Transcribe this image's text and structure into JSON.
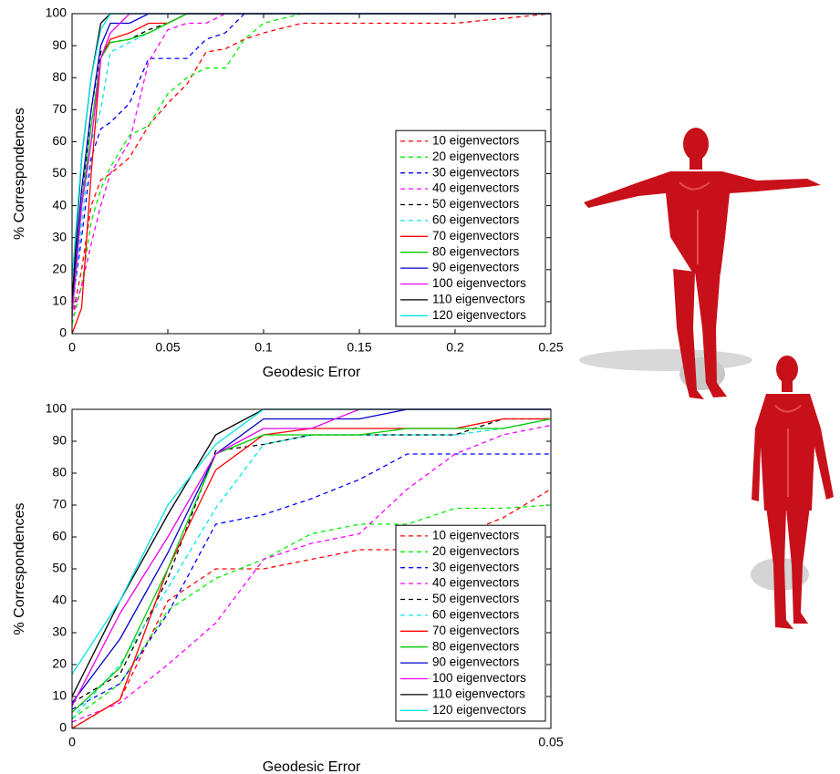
{
  "chart_data": [
    {
      "type": "line",
      "xlabel": "Geodesic Error",
      "ylabel": "% Correspondences",
      "x": [
        0,
        0.005,
        0.01,
        0.015,
        0.02,
        0.03,
        0.04,
        0.05,
        0.06,
        0.07,
        0.08,
        0.09,
        0.1,
        0.12,
        0.15,
        0.2,
        0.25
      ],
      "xlim": [
        0,
        0.25
      ],
      "xticks": [
        0,
        0.05,
        0.1,
        0.15,
        0.2,
        0.25
      ],
      "ylim": [
        0,
        100
      ],
      "yticks": [
        0,
        10,
        20,
        30,
        40,
        50,
        60,
        70,
        80,
        90,
        100
      ],
      "legend": "lower right",
      "series": [
        {
          "name": "10 eigenvectors",
          "color": "#ff0000",
          "style": "dashed",
          "values": [
            5,
            20,
            40,
            48,
            50,
            55,
            65,
            72,
            78,
            88,
            89,
            92,
            94,
            97,
            97,
            97,
            100
          ]
        },
        {
          "name": "20 eigenvectors",
          "color": "#00ee00",
          "style": "dashed",
          "values": [
            3,
            15,
            35,
            45,
            52,
            62,
            65,
            75,
            80,
            83,
            83,
            92,
            97,
            100,
            100,
            100,
            100
          ]
        },
        {
          "name": "30 eigenvectors",
          "color": "#0000ff",
          "style": "dashed",
          "values": [
            8,
            30,
            55,
            64,
            66,
            72,
            86,
            86,
            86,
            92,
            94,
            100,
            100,
            100,
            100,
            100,
            100
          ]
        },
        {
          "name": "40 eigenvectors",
          "color": "#ff00ff",
          "style": "dashed",
          "values": [
            5,
            15,
            28,
            40,
            50,
            60,
            85,
            95,
            97,
            97,
            100,
            100,
            100,
            100,
            100,
            100,
            100
          ]
        },
        {
          "name": "50 eigenvectors",
          "color": "#000000",
          "style": "dashed",
          "values": [
            8,
            40,
            70,
            88,
            91,
            92,
            95,
            97,
            100,
            100,
            100,
            100,
            100,
            100,
            100,
            100,
            100
          ]
        },
        {
          "name": "60 eigenvectors",
          "color": "#00e5e5",
          "style": "dashed",
          "values": [
            5,
            35,
            60,
            70,
            88,
            91,
            94,
            97,
            100,
            100,
            100,
            100,
            100,
            100,
            100,
            100,
            100
          ]
        },
        {
          "name": "70 eigenvectors",
          "color": "#ff0000",
          "style": "solid",
          "values": [
            0,
            8,
            50,
            86,
            92,
            94,
            97,
            97,
            100,
            100,
            100,
            100,
            100,
            100,
            100,
            100,
            100
          ]
        },
        {
          "name": "80 eigenvectors",
          "color": "#00cc00",
          "style": "solid",
          "values": [
            6,
            40,
            65,
            86,
            91,
            92,
            94,
            97,
            100,
            100,
            100,
            100,
            100,
            100,
            100,
            100,
            100
          ]
        },
        {
          "name": "90 eigenvectors",
          "color": "#0000cc",
          "style": "solid",
          "values": [
            8,
            45,
            70,
            90,
            97,
            97,
            100,
            100,
            100,
            100,
            100,
            100,
            100,
            100,
            100,
            100,
            100
          ]
        },
        {
          "name": "100 eigenvectors",
          "color": "#ee00ee",
          "style": "solid",
          "values": [
            6,
            40,
            60,
            86,
            94,
            100,
            100,
            100,
            100,
            100,
            100,
            100,
            100,
            100,
            100,
            100,
            100
          ]
        },
        {
          "name": "110 eigenvectors",
          "color": "#000000",
          "style": "solid",
          "values": [
            10,
            55,
            80,
            97,
            100,
            100,
            100,
            100,
            100,
            100,
            100,
            100,
            100,
            100,
            100,
            100,
            100
          ]
        },
        {
          "name": "120 eigenvectors",
          "color": "#00e5e5",
          "style": "solid",
          "values": [
            17,
            55,
            80,
            95,
            100,
            100,
            100,
            100,
            100,
            100,
            100,
            100,
            100,
            100,
            100,
            100,
            100
          ]
        }
      ]
    },
    {
      "type": "line",
      "xlabel": "Geodesic Error",
      "ylabel": "% Correspondences",
      "x": [
        0,
        0.005,
        0.01,
        0.015,
        0.02,
        0.025,
        0.03,
        0.035,
        0.04,
        0.045,
        0.05
      ],
      "xlim": [
        0,
        0.05
      ],
      "xticks": [
        0,
        0.05
      ],
      "ylim": [
        0,
        100
      ],
      "yticks": [
        0,
        10,
        20,
        30,
        40,
        50,
        60,
        70,
        80,
        90,
        100
      ],
      "legend": "lower right",
      "series": [
        {
          "name": "10 eigenvectors",
          "color": "#ff0000",
          "style": "dashed",
          "values": [
            0,
            9,
            40,
            50,
            50,
            53,
            56,
            56,
            60,
            66,
            75
          ]
        },
        {
          "name": "20 eigenvectors",
          "color": "#00ee00",
          "style": "dashed",
          "values": [
            3,
            14,
            37,
            47,
            53,
            61,
            64,
            64,
            69,
            69,
            70
          ]
        },
        {
          "name": "30 eigenvectors",
          "color": "#0000ff",
          "style": "dashed",
          "values": [
            6,
            14,
            36,
            64,
            67,
            72,
            78,
            86,
            86,
            86,
            86
          ]
        },
        {
          "name": "40 eigenvectors",
          "color": "#ff00ff",
          "style": "dashed",
          "values": [
            2,
            8,
            20,
            33,
            53,
            58,
            61,
            75,
            86,
            92,
            95
          ]
        },
        {
          "name": "50 eigenvectors",
          "color": "#000000",
          "style": "dashed",
          "values": [
            8,
            17,
            47,
            87,
            89,
            92,
            92,
            92,
            92,
            97,
            97
          ]
        },
        {
          "name": "60 eigenvectors",
          "color": "#00e5e5",
          "style": "dashed",
          "values": [
            3,
            20,
            44,
            69,
            89,
            92,
            92,
            92,
            92,
            94,
            97
          ]
        },
        {
          "name": "70 eigenvectors",
          "color": "#ff0000",
          "style": "solid",
          "values": [
            0,
            9,
            50,
            81,
            92,
            94,
            94,
            94,
            94,
            97,
            97
          ]
        },
        {
          "name": "80 eigenvectors",
          "color": "#00cc00",
          "style": "solid",
          "values": [
            5,
            19,
            50,
            86,
            92,
            92,
            92,
            94,
            94,
            94,
            97
          ]
        },
        {
          "name": "90 eigenvectors",
          "color": "#0000cc",
          "style": "solid",
          "values": [
            8,
            28,
            55,
            86,
            97,
            97,
            97,
            100,
            100,
            100,
            100
          ]
        },
        {
          "name": "100 eigenvectors",
          "color": "#ee00ee",
          "style": "solid",
          "values": [
            7,
            36,
            60,
            86,
            94,
            94,
            100,
            100,
            100,
            100,
            100
          ]
        },
        {
          "name": "110 eigenvectors",
          "color": "#000000",
          "style": "solid",
          "values": [
            10,
            40,
            67,
            92,
            100,
            100,
            100,
            100,
            100,
            100,
            100
          ]
        },
        {
          "name": "120 eigenvectors",
          "color": "#00e5e5",
          "style": "solid",
          "values": [
            17,
            40,
            70,
            89,
            100,
            100,
            100,
            100,
            100,
            100,
            100
          ]
        }
      ]
    }
  ]
}
